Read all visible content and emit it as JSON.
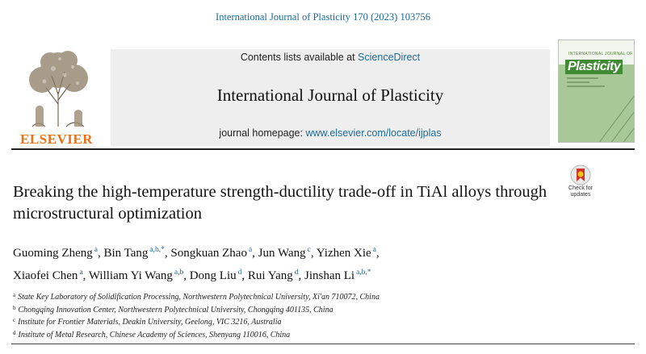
{
  "citation": "International Journal of Plasticity 170 (2023) 103756",
  "publisher": {
    "name": "ELSEVIER",
    "logo_icon": "elsevier-tree-icon"
  },
  "banner": {
    "contents_prefix": "Contents lists available at ",
    "contents_link": "ScienceDirect",
    "journal_title": "International Journal of Plasticity",
    "homepage_prefix": "journal homepage: ",
    "homepage_link": "www.elsevier.com/locate/ijplas"
  },
  "cover": {
    "small_text": "INTERNATIONAL JOURNAL OF",
    "title": "Plasticity"
  },
  "crossmark": {
    "line1": "Check for",
    "line2": "updates"
  },
  "article_title": "Breaking the high-temperature strength-ductility trade-off in TiAl alloys through microstructural optimization",
  "authors": [
    {
      "name": "Guoming Zheng",
      "sup": "a",
      "sep": ", "
    },
    {
      "name": "Bin Tang",
      "sup": "a,b,*",
      "sep": ", "
    },
    {
      "name": "Songkuan Zhao",
      "sup": "a",
      "sep": ", "
    },
    {
      "name": "Jun Wang",
      "sup": "c",
      "sep": ", "
    },
    {
      "name": "Yizhen Xie",
      "sup": "a",
      "sep": ","
    },
    {
      "name": "Xiaofei Chen",
      "sup": "a",
      "sep": ", "
    },
    {
      "name": "William Yi Wang",
      "sup": "a,b",
      "sep": ", "
    },
    {
      "name": "Dong Liu",
      "sup": "d",
      "sep": ", "
    },
    {
      "name": "Rui Yang",
      "sup": "d",
      "sep": ", "
    },
    {
      "name": "Jinshan Li",
      "sup": "a,b,*",
      "sep": ""
    }
  ],
  "affiliations": [
    {
      "key": "a",
      "text": "State Key Laboratory of Solidification Processing, Northwestern Polytechnical University, Xi'an 710072, China"
    },
    {
      "key": "b",
      "text": "Chongqing Innovation Center, Northwestern Polytechnical University, Chongqing 401135, China"
    },
    {
      "key": "c",
      "text": "Institute for Frontier Materials, Deakin University, Geelong, VIC 3216, Australia"
    },
    {
      "key": "d",
      "text": "Institute of Metal Research, Chinese Academy of Sciences, Shenyang 110016, China"
    }
  ],
  "colors": {
    "link": "#1f6b97",
    "elsevier_orange": "#e9711c",
    "banner_bg": "#eeeeee",
    "cover_green": "#a9c898"
  }
}
